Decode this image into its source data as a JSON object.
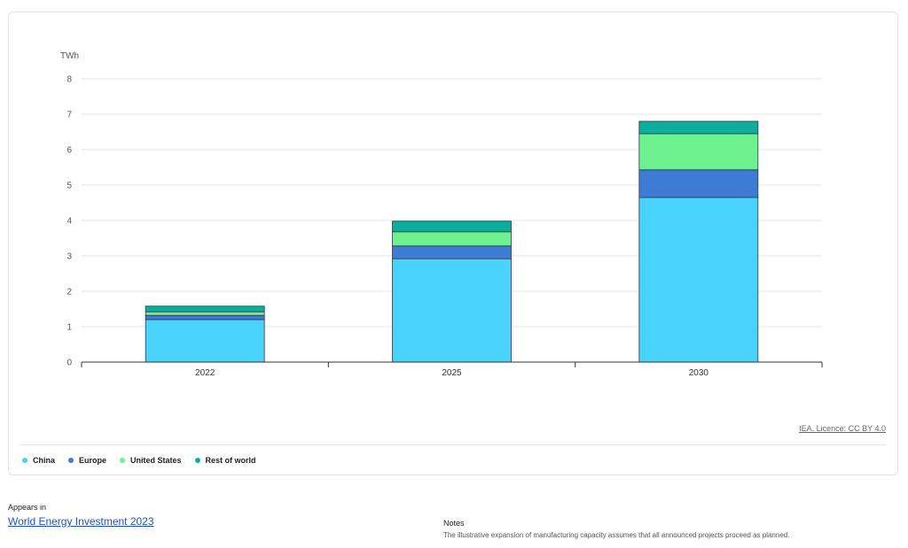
{
  "chart_data": {
    "type": "bar",
    "stacked": true,
    "unit_label": "TWh",
    "categories": [
      "2022",
      "2025",
      "2030"
    ],
    "series": [
      {
        "name": "China",
        "color": "#48d2fc",
        "values": [
          1.2,
          2.92,
          4.65
        ]
      },
      {
        "name": "Europe",
        "color": "#3e7bd5",
        "values": [
          0.12,
          0.36,
          0.78
        ]
      },
      {
        "name": "United States",
        "color": "#6ef28f",
        "values": [
          0.1,
          0.4,
          1.02
        ]
      },
      {
        "name": "Rest of world",
        "color": "#0bae9a",
        "values": [
          0.16,
          0.3,
          0.35
        ]
      }
    ],
    "ylim": [
      0,
      8
    ],
    "yticks": [
      "0",
      "1",
      "2",
      "3",
      "4",
      "5",
      "6",
      "7",
      "8"
    ],
    "grid": true,
    "legend_position": "bottom-left"
  },
  "licence_text": "IEA. Licence: CC BY 4.0",
  "appears_in": {
    "label": "Appears in",
    "link_text": "World Energy Investment 2023"
  },
  "notes": {
    "title": "Notes",
    "text": "The illustrative expansion of manufacturing capacity assumes that all announced projects proceed as planned."
  }
}
